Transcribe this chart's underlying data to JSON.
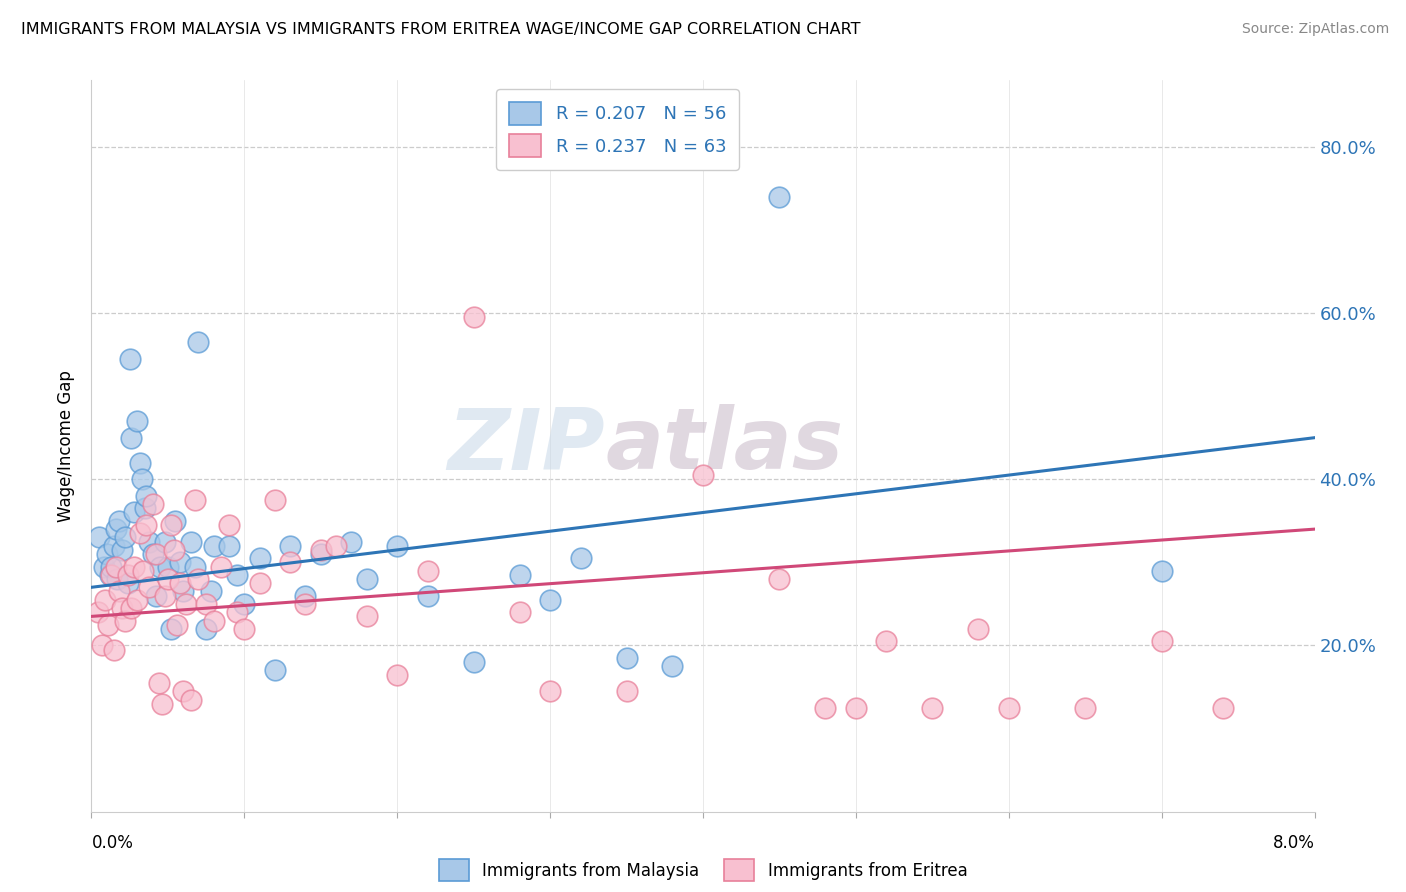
{
  "title": "IMMIGRANTS FROM MALAYSIA VS IMMIGRANTS FROM ERITREA WAGE/INCOME GAP CORRELATION CHART",
  "source": "Source: ZipAtlas.com",
  "ylabel": "Wage/Income Gap",
  "ytick_values": [
    0.2,
    0.4,
    0.6,
    0.8
  ],
  "xmin": 0.0,
  "xmax": 0.08,
  "ymin": 0.0,
  "ymax": 0.88,
  "legend1_text": "R = 0.207   N = 56",
  "legend2_text": "R = 0.237   N = 63",
  "legend_bottom1": "Immigrants from Malaysia",
  "legend_bottom2": "Immigrants from Eritrea",
  "color_malaysia_face": "#a8c8e8",
  "color_malaysia_edge": "#5b9bd5",
  "color_eritrea_face": "#f8c0d0",
  "color_eritrea_edge": "#e8809a",
  "color_line_malaysia": "#2e75b6",
  "color_line_eritrea": "#d04878",
  "color_right_axis": "#2e75b6",
  "watermark_color": "#d0dce8",
  "mal_trend": [
    0.27,
    0.45
  ],
  "eri_trend": [
    0.235,
    0.34
  ],
  "malaysia_x": [
    0.0005,
    0.0008,
    0.001,
    0.0012,
    0.0013,
    0.0015,
    0.0016,
    0.0017,
    0.0018,
    0.002,
    0.0022,
    0.0024,
    0.0025,
    0.0026,
    0.0028,
    0.003,
    0.0032,
    0.0033,
    0.0035,
    0.0036,
    0.0038,
    0.004,
    0.0042,
    0.0045,
    0.0048,
    0.005,
    0.0052,
    0.0055,
    0.0058,
    0.006,
    0.0065,
    0.0068,
    0.007,
    0.0075,
    0.0078,
    0.008,
    0.009,
    0.0095,
    0.01,
    0.011,
    0.012,
    0.013,
    0.014,
    0.015,
    0.017,
    0.018,
    0.02,
    0.022,
    0.025,
    0.028,
    0.03,
    0.032,
    0.035,
    0.038,
    0.045,
    0.07
  ],
  "malaysia_y": [
    0.33,
    0.295,
    0.31,
    0.285,
    0.295,
    0.32,
    0.34,
    0.28,
    0.35,
    0.315,
    0.33,
    0.275,
    0.545,
    0.45,
    0.36,
    0.47,
    0.42,
    0.4,
    0.365,
    0.38,
    0.325,
    0.31,
    0.26,
    0.295,
    0.325,
    0.295,
    0.22,
    0.35,
    0.3,
    0.265,
    0.325,
    0.295,
    0.565,
    0.22,
    0.265,
    0.32,
    0.32,
    0.285,
    0.25,
    0.305,
    0.17,
    0.32,
    0.26,
    0.31,
    0.325,
    0.28,
    0.32,
    0.26,
    0.18,
    0.285,
    0.255,
    0.305,
    0.185,
    0.175,
    0.74,
    0.29
  ],
  "eritrea_x": [
    0.0004,
    0.0007,
    0.0009,
    0.0011,
    0.0013,
    0.0015,
    0.0016,
    0.0018,
    0.002,
    0.0022,
    0.0024,
    0.0026,
    0.0028,
    0.003,
    0.0032,
    0.0034,
    0.0036,
    0.0038,
    0.004,
    0.0042,
    0.0044,
    0.0046,
    0.0048,
    0.005,
    0.0052,
    0.0054,
    0.0056,
    0.0058,
    0.006,
    0.0062,
    0.0065,
    0.0068,
    0.007,
    0.0075,
    0.008,
    0.0085,
    0.009,
    0.0095,
    0.01,
    0.011,
    0.012,
    0.013,
    0.014,
    0.015,
    0.016,
    0.018,
    0.02,
    0.022,
    0.025,
    0.028,
    0.03,
    0.035,
    0.04,
    0.045,
    0.048,
    0.05,
    0.052,
    0.055,
    0.058,
    0.06,
    0.065,
    0.07,
    0.074
  ],
  "eritrea_y": [
    0.24,
    0.2,
    0.255,
    0.225,
    0.285,
    0.195,
    0.295,
    0.265,
    0.245,
    0.23,
    0.285,
    0.245,
    0.295,
    0.255,
    0.335,
    0.29,
    0.345,
    0.27,
    0.37,
    0.31,
    0.155,
    0.13,
    0.26,
    0.28,
    0.345,
    0.315,
    0.225,
    0.275,
    0.145,
    0.25,
    0.135,
    0.375,
    0.28,
    0.25,
    0.23,
    0.295,
    0.345,
    0.24,
    0.22,
    0.275,
    0.375,
    0.3,
    0.25,
    0.315,
    0.32,
    0.235,
    0.165,
    0.29,
    0.595,
    0.24,
    0.145,
    0.145,
    0.405,
    0.28,
    0.125,
    0.125,
    0.205,
    0.125,
    0.22,
    0.125,
    0.125,
    0.205,
    0.125
  ]
}
